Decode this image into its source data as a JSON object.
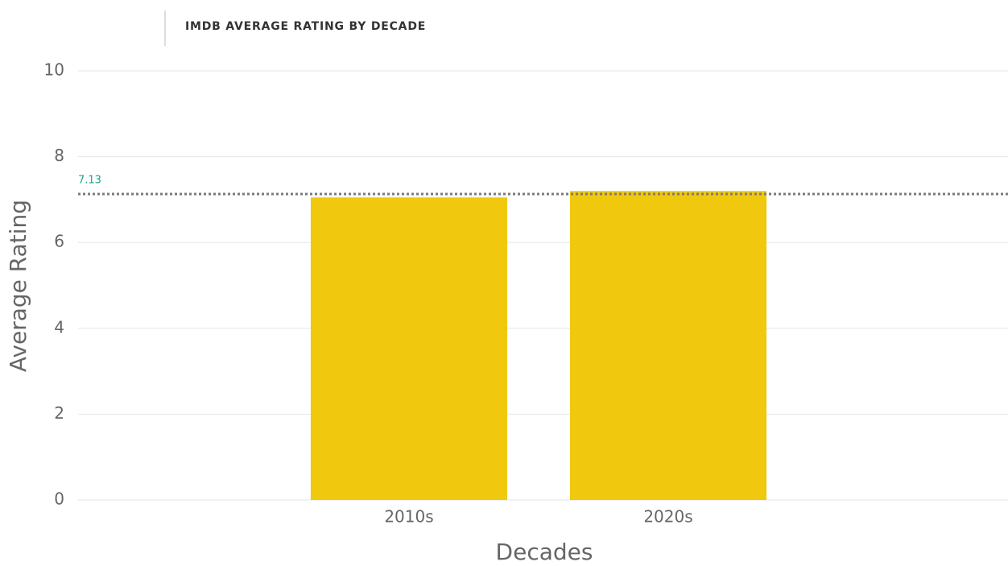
{
  "chart_data": {
    "type": "bar",
    "title": "IMDB AVERAGE RATING BY DECADE",
    "x_label": "Decades",
    "y_label": "Average Rating",
    "categories": [
      "2010s",
      "2020s"
    ],
    "values": [
      7.05,
      7.2
    ],
    "color": "#f0c80e",
    "ylim": [
      0,
      10
    ],
    "yticks": [
      0,
      2,
      4,
      6,
      8,
      10
    ],
    "grid": true,
    "reference_line": {
      "value": 7.13,
      "color": "#7a7a7a",
      "label_color": "#17a58a"
    }
  }
}
